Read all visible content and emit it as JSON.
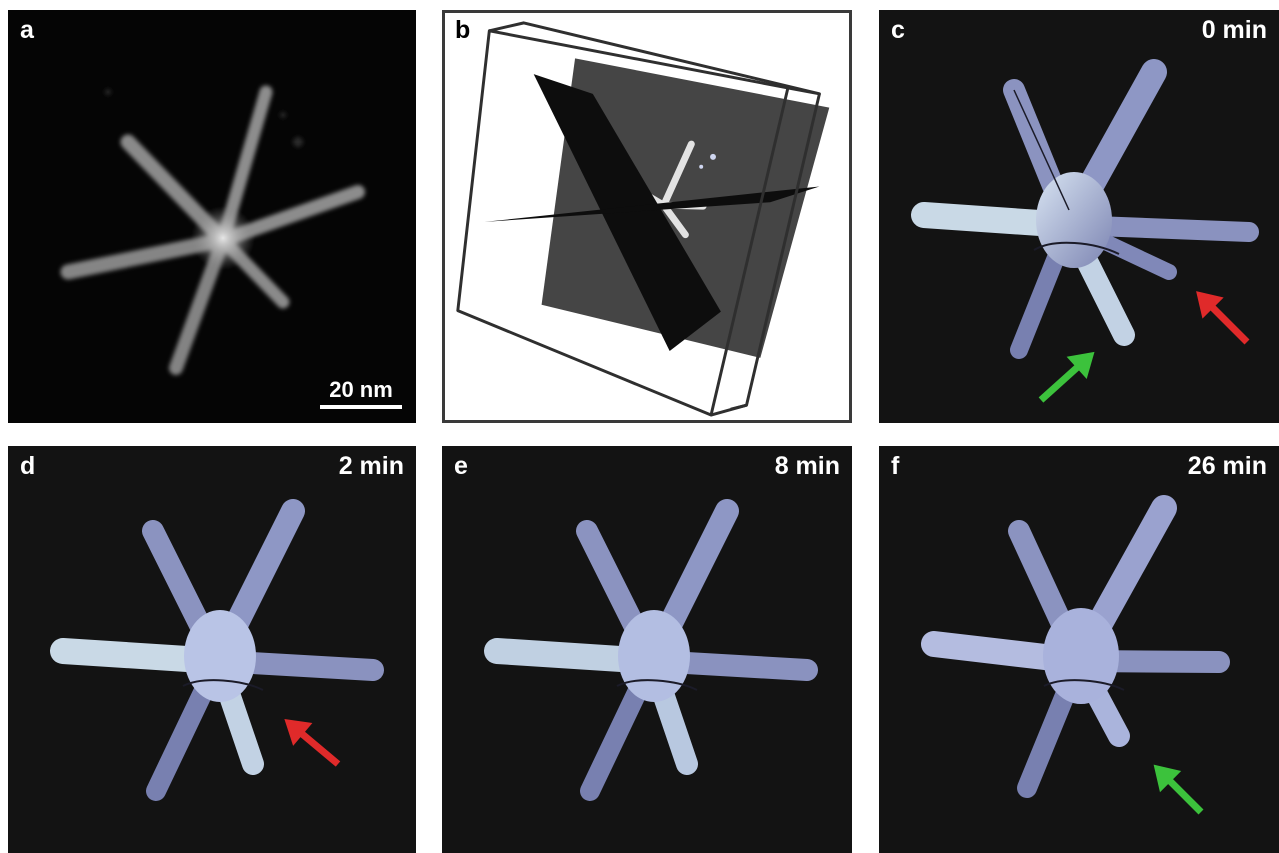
{
  "figure": {
    "panels": [
      {
        "id": "a",
        "label": "a",
        "time": "",
        "scale_bar": "20 nm"
      },
      {
        "id": "b",
        "label": "b",
        "time": ""
      },
      {
        "id": "c",
        "label": "c",
        "time": "0 min",
        "arrows": [
          "red",
          "green"
        ]
      },
      {
        "id": "d",
        "label": "d",
        "time": "2 min",
        "arrows": [
          "red"
        ]
      },
      {
        "id": "e",
        "label": "e",
        "time": "8 min",
        "arrows": []
      },
      {
        "id": "f",
        "label": "f",
        "time": "26 min",
        "arrows": [
          "green"
        ]
      }
    ],
    "colors": {
      "panel_bg": "#131313",
      "arrow_red": "#e02a2a",
      "arrow_green": "#3cc23c",
      "render_tint": "#b9c4e6"
    }
  }
}
